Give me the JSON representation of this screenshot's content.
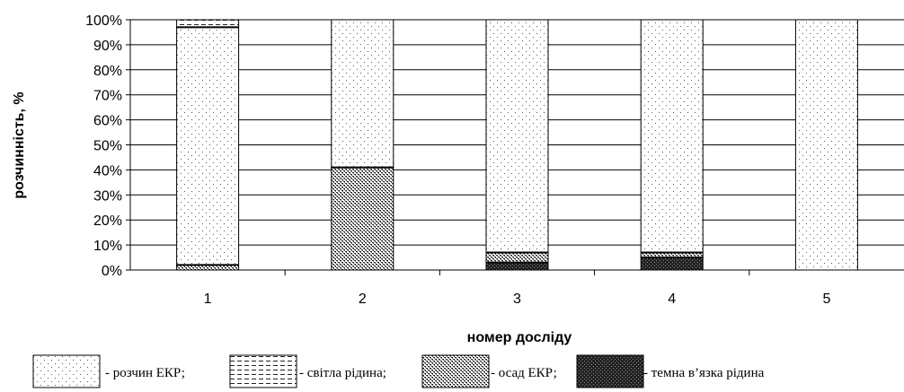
{
  "chart_data": {
    "type": "bar",
    "stacked": true,
    "percent": true,
    "categories": [
      "1",
      "2",
      "3",
      "4",
      "5"
    ],
    "xlabel": "номер досліду",
    "ylabel": "розчинність, %",
    "ylim": [
      0,
      100
    ],
    "yticks": [
      "0%",
      "10%",
      "20%",
      "30%",
      "40%",
      "50%",
      "60%",
      "70%",
      "80%",
      "90%",
      "100%"
    ],
    "grid": true,
    "legend_position": "bottom",
    "series": [
      {
        "name": "- темна в’язка рідина",
        "pattern": "dark",
        "values": [
          0,
          0,
          3,
          5,
          0
        ]
      },
      {
        "name": "- осад ЕКР;",
        "pattern": "dense-dots",
        "values": [
          2,
          41,
          4,
          2,
          0
        ]
      },
      {
        "name": "- розчин ЕКР;",
        "pattern": "sparse-dots",
        "values": [
          95,
          59,
          93,
          93,
          100
        ]
      },
      {
        "name": "- світла рідина;",
        "pattern": "dashes",
        "values": [
          3,
          0,
          0,
          0,
          0
        ]
      }
    ],
    "legend_order": [
      2,
      3,
      1,
      0
    ]
  }
}
